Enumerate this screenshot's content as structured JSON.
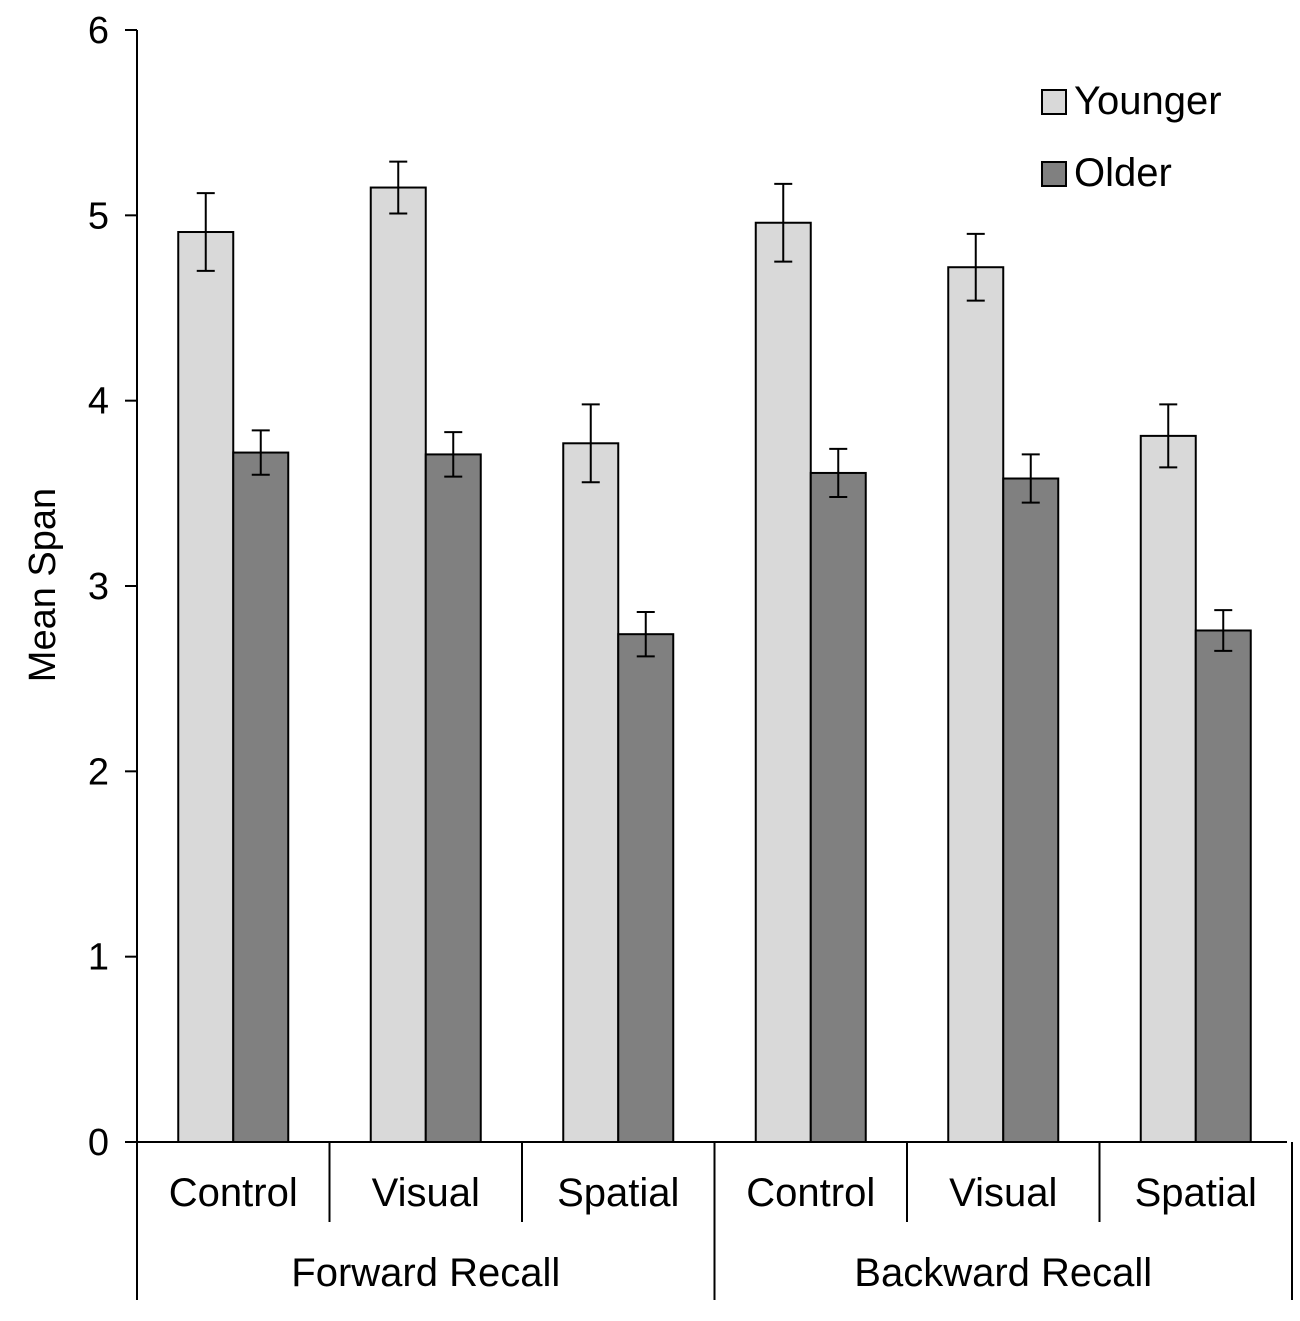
{
  "chart_data": {
    "type": "bar",
    "title": "",
    "xlabel": "",
    "ylabel": "Mean Span",
    "ylim": [
      0,
      6
    ],
    "yticks": [
      0,
      1,
      2,
      3,
      4,
      5,
      6
    ],
    "legend_position": "top-right",
    "groups": [
      {
        "label": "Forward Recall",
        "categories": [
          "Control",
          "Visual",
          "Spatial"
        ]
      },
      {
        "label": "Backward Recall",
        "categories": [
          "Control",
          "Visual",
          "Spatial"
        ]
      }
    ],
    "categories": [
      "Control",
      "Visual",
      "Spatial",
      "Control",
      "Visual",
      "Spatial"
    ],
    "series": [
      {
        "name": "Younger",
        "color": "#d9d9d9",
        "values": [
          4.91,
          5.15,
          3.77,
          4.96,
          4.72,
          3.81
        ],
        "errors": [
          0.21,
          0.14,
          0.21,
          0.21,
          0.18,
          0.17
        ]
      },
      {
        "name": "Older",
        "color": "#808080",
        "values": [
          3.72,
          3.71,
          2.74,
          3.61,
          3.58,
          2.76
        ],
        "errors": [
          0.12,
          0.12,
          0.12,
          0.13,
          0.13,
          0.11
        ]
      }
    ]
  }
}
